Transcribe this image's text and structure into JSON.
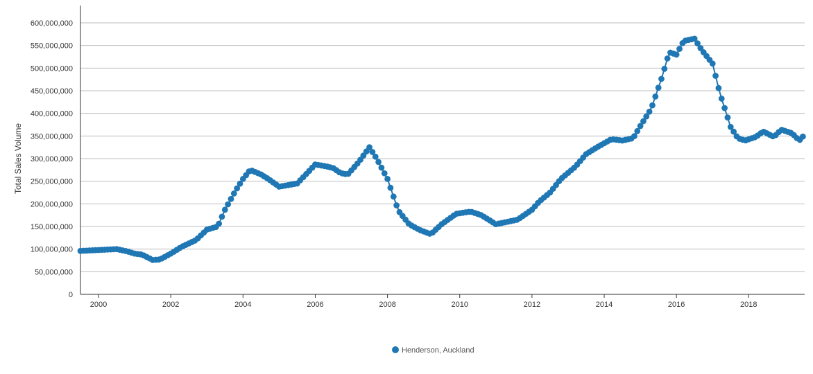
{
  "chart_data": {
    "type": "line",
    "title": "",
    "xlabel": "",
    "ylabel": "Total Sales Volume",
    "xlim": [
      1999.5,
      2019.55
    ],
    "ylim": [
      0,
      600000000
    ],
    "x_ticks": [
      2000,
      2002,
      2004,
      2006,
      2008,
      2010,
      2012,
      2014,
      2016,
      2018
    ],
    "y_ticks": [
      0,
      50000000,
      100000000,
      150000000,
      200000000,
      250000000,
      300000000,
      350000000,
      400000000,
      450000000,
      500000000,
      550000000,
      600000000
    ],
    "y_tick_labels": [
      "0",
      "50,000,000",
      "100,000,000",
      "150,000,000",
      "200,000,000",
      "250,000,000",
      "300,000,000",
      "350,000,000",
      "400,000,000",
      "450,000,000",
      "500,000,000",
      "550,000,000",
      "600,000,000"
    ],
    "grid": "horizontal",
    "legend_position": "bottom-center",
    "color": "#1f77b4",
    "series": [
      {
        "name": "Henderson, Auckland",
        "key_points": [
          [
            1999.5,
            96000000
          ],
          [
            2000.0,
            98000000
          ],
          [
            2000.5,
            100000000
          ],
          [
            2000.8,
            95000000
          ],
          [
            2001.0,
            90000000
          ],
          [
            2001.2,
            88000000
          ],
          [
            2001.5,
            76000000
          ],
          [
            2001.7,
            77000000
          ],
          [
            2002.0,
            90000000
          ],
          [
            2002.3,
            105000000
          ],
          [
            2002.7,
            120000000
          ],
          [
            2003.0,
            143000000
          ],
          [
            2003.3,
            150000000
          ],
          [
            2003.5,
            187000000
          ],
          [
            2003.8,
            230000000
          ],
          [
            2004.0,
            255000000
          ],
          [
            2004.2,
            275000000
          ],
          [
            2004.5,
            265000000
          ],
          [
            2004.7,
            255000000
          ],
          [
            2005.0,
            238000000
          ],
          [
            2005.5,
            245000000
          ],
          [
            2005.8,
            270000000
          ],
          [
            2006.0,
            287000000
          ],
          [
            2006.3,
            283000000
          ],
          [
            2006.5,
            279000000
          ],
          [
            2006.7,
            268000000
          ],
          [
            2006.9,
            265000000
          ],
          [
            2007.2,
            292000000
          ],
          [
            2007.5,
            325000000
          ],
          [
            2007.7,
            300000000
          ],
          [
            2008.0,
            255000000
          ],
          [
            2008.3,
            185000000
          ],
          [
            2008.6,
            155000000
          ],
          [
            2008.9,
            142000000
          ],
          [
            2009.2,
            133000000
          ],
          [
            2009.5,
            155000000
          ],
          [
            2009.9,
            178000000
          ],
          [
            2010.3,
            183000000
          ],
          [
            2010.6,
            175000000
          ],
          [
            2011.0,
            155000000
          ],
          [
            2011.3,
            160000000
          ],
          [
            2011.6,
            165000000
          ],
          [
            2012.0,
            187000000
          ],
          [
            2012.2,
            205000000
          ],
          [
            2012.5,
            225000000
          ],
          [
            2012.8,
            255000000
          ],
          [
            2013.2,
            282000000
          ],
          [
            2013.5,
            310000000
          ],
          [
            2013.8,
            325000000
          ],
          [
            2014.2,
            343000000
          ],
          [
            2014.5,
            340000000
          ],
          [
            2014.8,
            345000000
          ],
          [
            2015.0,
            372000000
          ],
          [
            2015.3,
            410000000
          ],
          [
            2015.6,
            480000000
          ],
          [
            2015.8,
            535000000
          ],
          [
            2016.0,
            530000000
          ],
          [
            2016.2,
            560000000
          ],
          [
            2016.5,
            565000000
          ],
          [
            2016.7,
            540000000
          ],
          [
            2017.0,
            510000000
          ],
          [
            2017.2,
            445000000
          ],
          [
            2017.5,
            370000000
          ],
          [
            2017.7,
            345000000
          ],
          [
            2017.9,
            340000000
          ],
          [
            2018.2,
            348000000
          ],
          [
            2018.4,
            360000000
          ],
          [
            2018.7,
            348000000
          ],
          [
            2018.9,
            364000000
          ],
          [
            2019.2,
            356000000
          ],
          [
            2019.4,
            340000000
          ],
          [
            2019.55,
            353000000
          ]
        ]
      }
    ]
  }
}
